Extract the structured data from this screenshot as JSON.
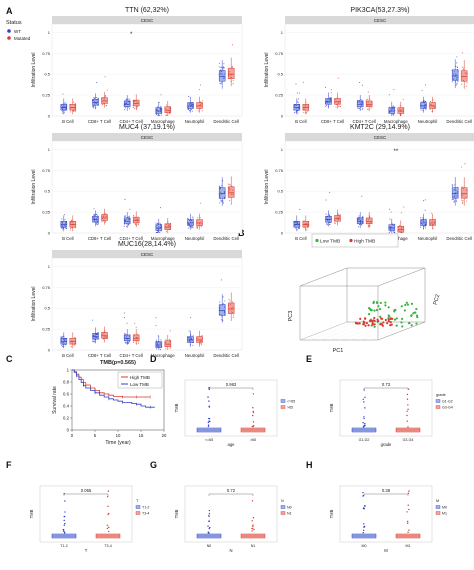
{
  "panel_letters": [
    "A",
    "B",
    "C",
    "D",
    "E",
    "F",
    "G",
    "H"
  ],
  "status_legend": {
    "title": "Status",
    "items": [
      "WT",
      "Mutated"
    ]
  },
  "colors": {
    "wt": "#3340c7",
    "mutated": "#d73a2f",
    "box_wt": "#9fb3e6",
    "box_mut": "#f0a39c",
    "green": "#3cb043",
    "facet": "#d9d9d9"
  },
  "chart_data": [
    {
      "type": "box",
      "panel": "A",
      "title": "TTN (62,32%)",
      "facet_label": "CESC",
      "ylabel": "Infiltration Level",
      "categories": [
        "B Cell",
        "CD8+ T Cell",
        "CD4+ T Cell",
        "Macrophage",
        "Neutrophil",
        "Dendritic Cell"
      ],
      "ylim": [
        0,
        1.1
      ],
      "yticks": [
        0.0,
        0.25,
        0.5,
        0.75,
        1.0
      ],
      "significance": [
        {
          "category": "CD4+ T Cell",
          "label": "*"
        }
      ],
      "series": [
        {
          "name": "WT",
          "medians": [
            0.1,
            0.16,
            0.14,
            0.06,
            0.12,
            0.47
          ]
        },
        {
          "name": "Mutated",
          "medians": [
            0.1,
            0.18,
            0.15,
            0.07,
            0.12,
            0.5
          ]
        }
      ]
    },
    {
      "type": "box",
      "panel": "A",
      "title": "PIK3CA(53,27.3%)",
      "facet_label": "CESC",
      "ylabel": "Infiltration Level",
      "categories": [
        "B Cell",
        "CD8+ T Cell",
        "CD4+ T Cell",
        "Macrophage",
        "Neutrophil",
        "Dendritic Cell"
      ],
      "ylim": [
        0,
        1.1
      ],
      "yticks": [
        0.0,
        0.25,
        0.5,
        0.75,
        1.0
      ],
      "significance": [],
      "series": [
        {
          "name": "WT",
          "medians": [
            0.1,
            0.17,
            0.14,
            0.06,
            0.12,
            0.48
          ]
        },
        {
          "name": "Mutated",
          "medians": [
            0.1,
            0.17,
            0.14,
            0.06,
            0.12,
            0.47
          ]
        }
      ]
    },
    {
      "type": "box",
      "panel": "A",
      "title": "MUC4 (37,19.1%)",
      "facet_label": "CESC",
      "ylabel": "Infiltration Level",
      "categories": [
        "B Cell",
        "CD8+ T Cell",
        "CD4+ T Cell",
        "Macrophage",
        "Neutrophil",
        "Dendritic Cell"
      ],
      "ylim": [
        0,
        1.1
      ],
      "yticks": [
        0.0,
        0.25,
        0.5,
        0.75,
        1.0
      ],
      "significance": [],
      "series": [
        {
          "name": "WT",
          "medians": [
            0.1,
            0.16,
            0.14,
            0.06,
            0.12,
            0.47
          ]
        },
        {
          "name": "Mutated",
          "medians": [
            0.1,
            0.18,
            0.15,
            0.07,
            0.12,
            0.48
          ]
        }
      ]
    },
    {
      "type": "box",
      "panel": "A",
      "title": "KMT2C (29,14.9%)",
      "facet_label": "CESC",
      "ylabel": "Infiltration Level",
      "categories": [
        "B Cell",
        "CD8+ T Cell",
        "CD4+ T Cell",
        "Macrophage",
        "Neutrophil",
        "Dendritic Cell"
      ],
      "ylim": [
        0,
        1.1
      ],
      "yticks": [
        0.0,
        0.25,
        0.5,
        0.75,
        1.0
      ],
      "significance": [
        {
          "category": "Macrophage",
          "label": "**"
        }
      ],
      "series": [
        {
          "name": "WT",
          "medians": [
            0.1,
            0.16,
            0.14,
            0.06,
            0.12,
            0.47
          ]
        },
        {
          "name": "Mutated",
          "medians": [
            0.1,
            0.17,
            0.14,
            0.04,
            0.12,
            0.47
          ]
        }
      ]
    },
    {
      "type": "box",
      "panel": "A",
      "title": "MUC16(28,14.4%)",
      "facet_label": "CESC",
      "ylabel": "Infiltration Level",
      "categories": [
        "B Cell",
        "CD8+ T Cell",
        "CD4+ T Cell",
        "Macrophage",
        "Neutrophil",
        "Dendritic Cell"
      ],
      "ylim": [
        0,
        1.1
      ],
      "yticks": [
        0.0,
        0.25,
        0.5,
        0.75,
        1.0
      ],
      "significance": [],
      "series": [
        {
          "name": "WT",
          "medians": [
            0.1,
            0.16,
            0.14,
            0.06,
            0.12,
            0.47
          ]
        },
        {
          "name": "Mutated",
          "medians": [
            0.1,
            0.17,
            0.14,
            0.07,
            0.12,
            0.49
          ]
        }
      ]
    },
    {
      "type": "scatter3d",
      "panel": "B",
      "legend": [
        "Low TMB",
        "High TMB"
      ],
      "axes": [
        "PC1",
        "PC2",
        "PC3"
      ]
    },
    {
      "type": "line",
      "panel": "C",
      "title": "TMB(p=0.565)",
      "xlabel": "Time (year)",
      "ylabel": "Survival rate",
      "xlim": [
        0,
        20
      ],
      "ylim": [
        0,
        1
      ],
      "xticks": [
        0,
        5,
        10,
        15,
        20
      ],
      "yticks": [
        0.0,
        0.2,
        0.4,
        0.6,
        0.8,
        1.0
      ],
      "legend": [
        "High TMB",
        "Low TMB"
      ],
      "series": [
        {
          "name": "High TMB",
          "x": [
            0,
            0.5,
            1,
            1.5,
            2,
            2.5,
            3,
            4,
            5,
            6,
            7,
            8,
            9,
            10,
            11,
            12,
            13,
            14,
            15,
            16,
            17
          ],
          "y": [
            1.0,
            0.97,
            0.93,
            0.88,
            0.84,
            0.79,
            0.75,
            0.7,
            0.66,
            0.62,
            0.6,
            0.58,
            0.56,
            0.56,
            0.55,
            0.55,
            0.55,
            0.55,
            0.55,
            0.55,
            0.55
          ]
        },
        {
          "name": "Low TMB",
          "x": [
            0,
            0.5,
            1,
            1.5,
            2,
            2.5,
            3,
            4,
            5,
            6,
            7,
            8,
            9,
            10,
            11,
            12,
            13,
            14,
            15,
            16,
            17,
            18
          ],
          "y": [
            1.0,
            0.96,
            0.9,
            0.84,
            0.79,
            0.74,
            0.7,
            0.66,
            0.62,
            0.58,
            0.55,
            0.52,
            0.5,
            0.48,
            0.46,
            0.46,
            0.44,
            0.43,
            0.4,
            0.38,
            0.38,
            0.38
          ]
        }
      ]
    },
    {
      "type": "box",
      "panel": "D",
      "pvalue": "0.983",
      "xlabel": "age",
      "ylabel": "TMB",
      "categories": [
        "<=65",
        ">65"
      ],
      "legend": [
        "<=65",
        ">65"
      ]
    },
    {
      "type": "box",
      "panel": "E",
      "pvalue": "0.73",
      "xlabel": "grade",
      "ylabel": "TMB",
      "categories": [
        "G1-G2",
        "G3-G4"
      ],
      "legend_title": "grade",
      "legend": [
        "G1-G2",
        "G3-G4"
      ]
    },
    {
      "type": "box",
      "panel": "F",
      "pvalue": "0.055",
      "xlabel": "T",
      "ylabel": "TMB",
      "categories": [
        "T1-2",
        "T3-4"
      ],
      "legend_title": "T",
      "legend": [
        "T1-2",
        "T3-4"
      ]
    },
    {
      "type": "box",
      "panel": "G",
      "pvalue": "0.72",
      "xlabel": "N",
      "ylabel": "TMB",
      "categories": [
        "N0",
        "N1"
      ],
      "legend_title": "N",
      "legend": [
        "N0",
        "N1"
      ]
    },
    {
      "type": "box",
      "panel": "H",
      "pvalue": "0.38",
      "xlabel": "M",
      "ylabel": "TMB",
      "categories": [
        "M0",
        "M1"
      ],
      "legend_title": "M",
      "legend": [
        "M0",
        "M1"
      ]
    }
  ]
}
